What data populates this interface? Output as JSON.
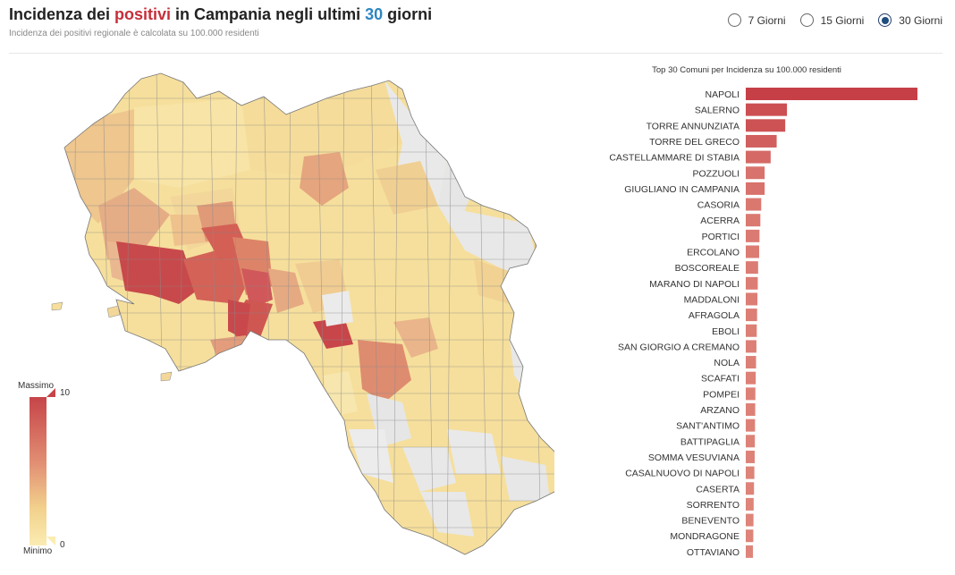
{
  "header": {
    "title_prefix": "Incidenza dei ",
    "title_highlight": "positivi",
    "title_middle": " in Campania negli ultimi ",
    "title_days": "30",
    "title_suffix": " giorni",
    "subtitle": "Incidenza dei positivi regionale è calcolata su 100.000 residenti"
  },
  "period_selector": {
    "options": [
      "7 Giorni",
      "15 Giorni",
      "30 Giorni"
    ],
    "selected": "30 Giorni"
  },
  "legend": {
    "max_label": "Massimo",
    "min_label": "Minimo",
    "max_value": "10",
    "min_value": "0"
  },
  "colors": {
    "high": "#c64449",
    "mid": "#e29074",
    "low": "#fbecb2",
    "none": "#e8e8e8"
  },
  "chart_data": {
    "type": "bar",
    "orientation": "horizontal",
    "title": "Top 30 Comuni per Incidenza su 100.000 residenti",
    "categories": [
      "NAPOLI",
      "SALERNO",
      "TORRE ANNUNZIATA",
      "TORRE DEL GRECO",
      "CASTELLAMMARE DI STABIA",
      "POZZUOLI",
      "GIUGLIANO IN CAMPANIA",
      "CASORIA",
      "ACERRA",
      "PORTICI",
      "ERCOLANO",
      "BOSCOREALE",
      "MARANO DI NAPOLI",
      "MADDALONI",
      "AFRAGOLA",
      "EBOLI",
      "SAN GIORGIO A CREMANO",
      "NOLA",
      "SCAFATI",
      "POMPEI",
      "ARZANO",
      "SANT'ANTIMO",
      "BATTIPAGLIA",
      "SOMMA VESUVIANA",
      "CASALNUOVO DI NAPOLI",
      "CASERTA",
      "SORRENTO",
      "BENEVENTO",
      "MONDRAGONE",
      "OTTAVIANO"
    ],
    "values": [
      10,
      2.4,
      2.3,
      1.8,
      1.45,
      1.1,
      1.1,
      0.9,
      0.85,
      0.8,
      0.78,
      0.72,
      0.7,
      0.68,
      0.66,
      0.64,
      0.62,
      0.6,
      0.58,
      0.56,
      0.55,
      0.54,
      0.53,
      0.52,
      0.5,
      0.48,
      0.46,
      0.45,
      0.44,
      0.42
    ]
  }
}
